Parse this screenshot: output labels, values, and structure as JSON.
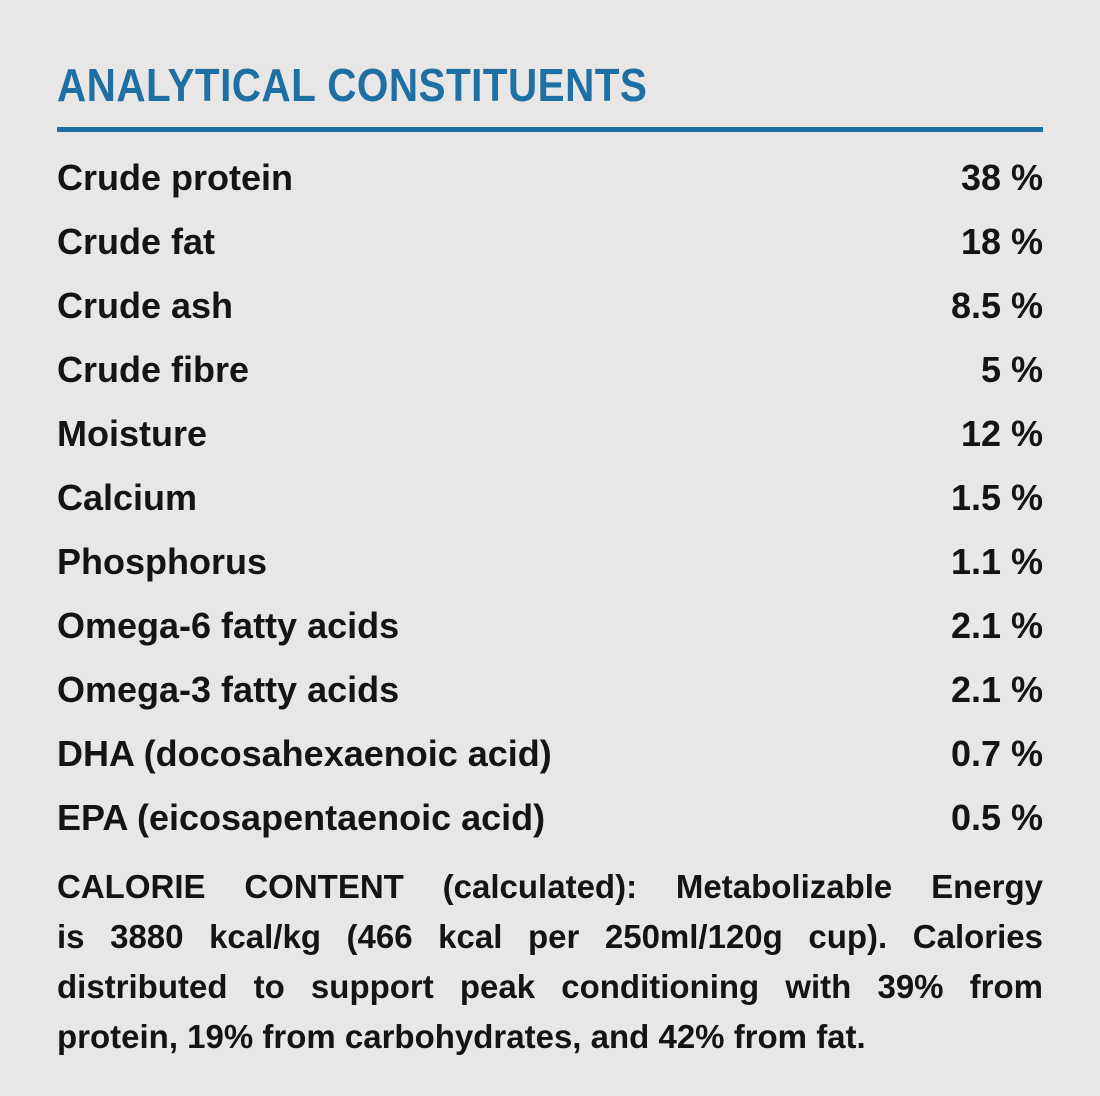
{
  "colors": {
    "background": "#e8e7e5",
    "accent": "#1d6fa4",
    "text": "#141414"
  },
  "header": {
    "title": "ANALYTICAL CONSTITUENTS"
  },
  "table": {
    "rows": [
      {
        "label": "Crude protein",
        "value": "38 %"
      },
      {
        "label": "Crude fat",
        "value": "18 %"
      },
      {
        "label": "Crude ash",
        "value": "8.5 %"
      },
      {
        "label": "Crude fibre",
        "value": "5 %"
      },
      {
        "label": "Moisture",
        "value": "12 %"
      },
      {
        "label": "Calcium",
        "value": "1.5 %"
      },
      {
        "label": "Phosphorus",
        "value": "1.1 %"
      },
      {
        "label": "Omega-6 fatty acids",
        "value": "2.1 %"
      },
      {
        "label": "Omega-3 fatty acids",
        "value": "2.1 %"
      },
      {
        "label": "DHA (docosahexaenoic acid)",
        "value": "0.7 %"
      },
      {
        "label": "EPA (eicosapentaenoic acid)",
        "value": "0.5 %"
      }
    ]
  },
  "calorie_content": {
    "lines": [
      "CALORIE CONTENT (calculated): Metabolizable Energy",
      "is 3880 kcal/kg (466 kcal per 250ml/120g cup). Calories",
      "distributed to support peak conditioning with 39% from",
      "protein, 19% from carbohydrates, and 42% from fat."
    ]
  }
}
